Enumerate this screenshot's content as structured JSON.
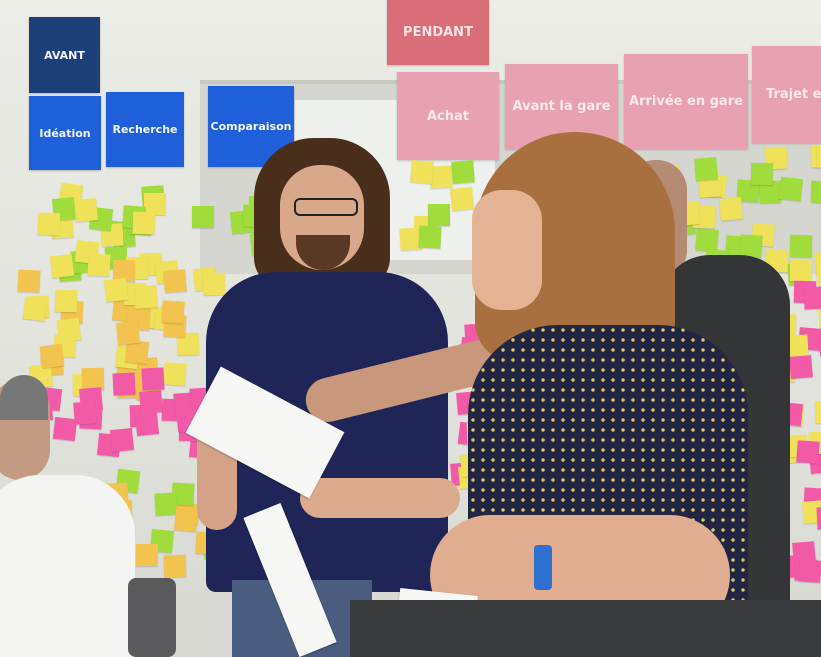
{
  "wall_cards": {
    "avant": "AVANT",
    "pendant": "PENDANT",
    "ideation": "Idéation",
    "recherche": "Recherche",
    "comparaison": "Comparaison",
    "achat": "Achat",
    "avant_la_gare": "Avant la gare",
    "arrivee_en_gare": "Arrivée en gare",
    "trajet": "Trajet e"
  },
  "colors": {
    "sticky_yellow": "#efe25a",
    "sticky_green": "#9fdc3c",
    "sticky_pink": "#f25aa8",
    "sticky_orange": "#f2c34e",
    "card_blue": "#1f5fd9",
    "card_navy": "#1c3f7a",
    "card_pink": "#e7a1b0",
    "shirt_navy": "#1f2556"
  }
}
